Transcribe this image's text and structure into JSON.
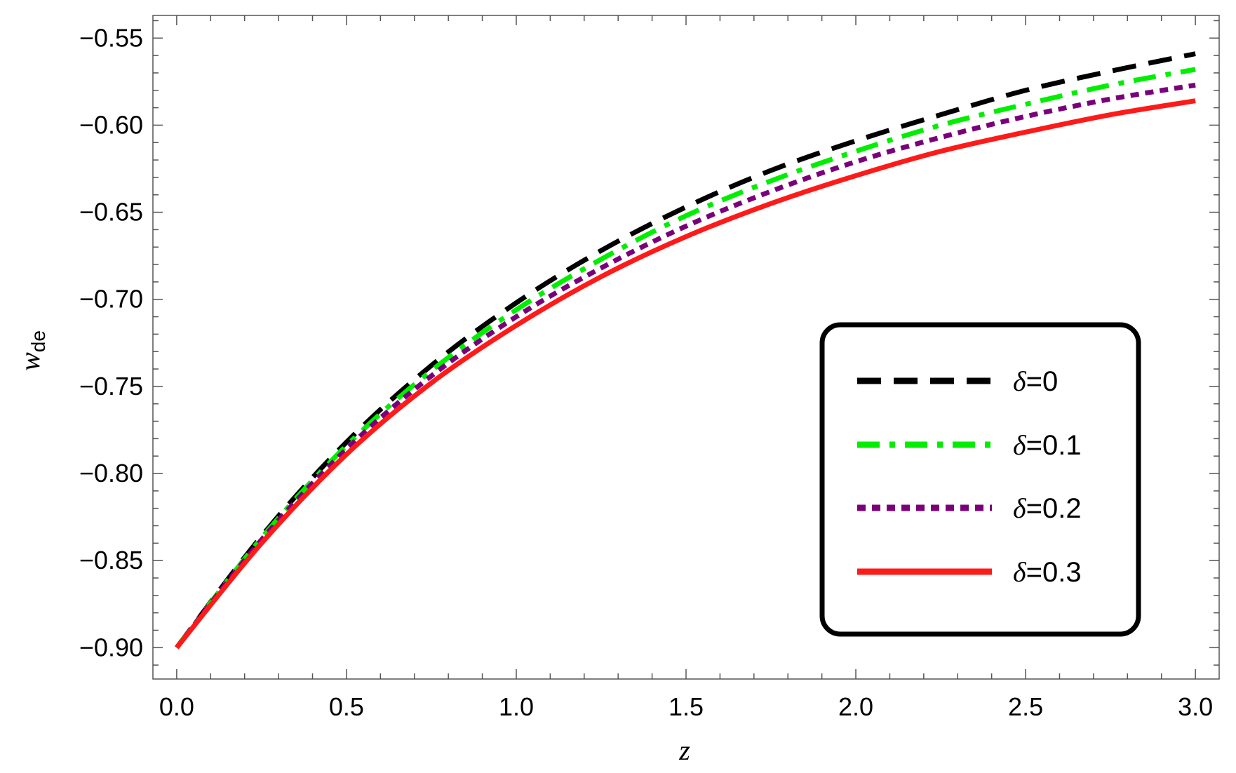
{
  "chart_data": {
    "type": "line",
    "title": "",
    "xlabel": "z",
    "ylabel_main": "w",
    "ylabel_sub": "de",
    "xlim": [
      -0.07,
      3.07
    ],
    "ylim": [
      -0.918,
      -0.537
    ],
    "xticks": [
      0.0,
      0.5,
      1.0,
      1.5,
      2.0,
      2.5,
      3.0
    ],
    "xtick_labels": [
      "0.0",
      "0.5",
      "1.0",
      "1.5",
      "2.0",
      "2.5",
      "3.0"
    ],
    "yticks": [
      -0.55,
      -0.6,
      -0.65,
      -0.7,
      -0.75,
      -0.8,
      -0.85,
      -0.9
    ],
    "ytick_labels": [
      "−0.55",
      "−0.60",
      "−0.65",
      "−0.70",
      "−0.75",
      "−0.80",
      "−0.85",
      "−0.90"
    ],
    "grid": false,
    "legend_position": "right",
    "x": [
      0.0,
      0.25,
      0.5,
      0.75,
      1.0,
      1.25,
      1.5,
      1.75,
      2.0,
      2.25,
      2.5,
      2.75,
      3.0
    ],
    "series": [
      {
        "name": "δ=0",
        "symbol": "δ",
        "value_text": "=0",
        "color": "#000000",
        "style": "dashed",
        "values": [
          -0.9,
          -0.836,
          -0.782,
          -0.738,
          -0.702,
          -0.672,
          -0.647,
          -0.626,
          -0.609,
          -0.594,
          -0.58,
          -0.569,
          -0.559
        ]
      },
      {
        "name": "δ=0.1",
        "symbol": "δ",
        "value_text": "=0.1",
        "color": "#00ee00",
        "style": "dashdot",
        "values": [
          -0.9,
          -0.837,
          -0.784,
          -0.741,
          -0.706,
          -0.677,
          -0.652,
          -0.632,
          -0.615,
          -0.6,
          -0.588,
          -0.577,
          -0.568
        ]
      },
      {
        "name": "δ=0.2",
        "symbol": "δ",
        "value_text": "=0.2",
        "color": "#7a007a",
        "style": "dotted",
        "values": [
          -0.9,
          -0.838,
          -0.786,
          -0.744,
          -0.71,
          -0.682,
          -0.658,
          -0.638,
          -0.621,
          -0.607,
          -0.595,
          -0.585,
          -0.577
        ]
      },
      {
        "name": "δ=0.3",
        "symbol": "δ",
        "value_text": "=0.3",
        "color": "#ff1a1a",
        "style": "solid",
        "values": [
          -0.9,
          -0.84,
          -0.789,
          -0.748,
          -0.715,
          -0.687,
          -0.664,
          -0.645,
          -0.629,
          -0.615,
          -0.604,
          -0.594,
          -0.586
        ]
      }
    ]
  }
}
